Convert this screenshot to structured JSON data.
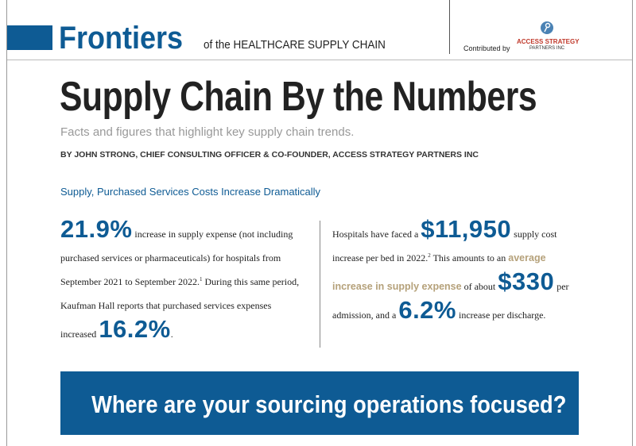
{
  "header": {
    "brand": "Frontiers",
    "brand_sub": "of the HEALTHCARE SUPPLY CHAIN",
    "contributed_by": "Contributed by",
    "logo_line1": "ACCESS STRATEGY",
    "logo_line2": "PARTNERS INC"
  },
  "article": {
    "title": "Supply Chain By the Numbers",
    "subtitle": "Facts and figures that highlight key supply chain trends.",
    "byline": "BY JOHN STRONG, CHIEF CONSULTING OFFICER & CO-FOUNDER, ACCESS STRATEGY PARTNERS INC",
    "section_heading": "Supply, Purchased Services Costs Increase Dramatically"
  },
  "left_column": {
    "stat1": "21.9%",
    "text1": "increase in supply expense (not including purchased services or pharmaceuticals) for hospitals from September 2021 to September 2022.",
    "note1": "1",
    "text2": "During this same period, Kaufman Hall reports that purchased services expenses increased",
    "stat2": "16.2%",
    "end": "."
  },
  "right_column": {
    "text1": "Hospitals have faced a",
    "stat1": "$11,950",
    "text2": "supply cost increase per bed in 2022.",
    "note2": "2",
    "text3": "This amounts to an",
    "highlight": "average increase in supply expense",
    "text4": "of about",
    "stat2": "$330",
    "text5": "per admission, and a",
    "stat3": "6.2%",
    "text6": "increase per discharge."
  },
  "banner": {
    "text": "Where are your sourcing operations focused?"
  }
}
